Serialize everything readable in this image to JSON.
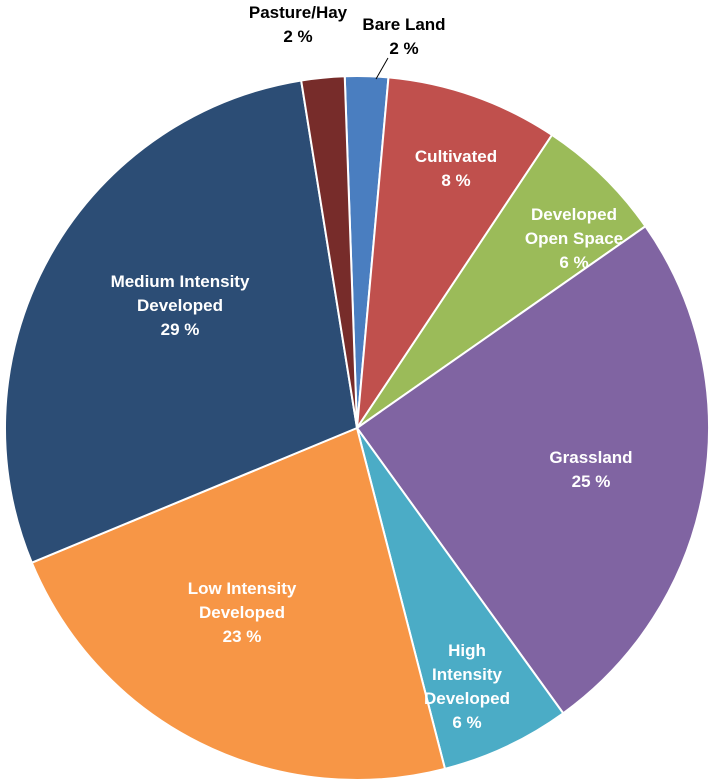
{
  "chart_data": {
    "type": "pie",
    "start_angle_deg": -2,
    "direction": "clockwise",
    "slices": [
      {
        "name": "Bare Land",
        "value": 2,
        "value_label": "2 %",
        "color": "#4a7ec0",
        "label_color": "#000000"
      },
      {
        "name": "Cultivated",
        "value": 8,
        "value_label": "8 %",
        "color": "#c0504d",
        "label_color": "#ffffff"
      },
      {
        "name": "Developed Open Space",
        "value": 6,
        "value_label": "6 %",
        "color": "#9bbb59",
        "label_color": "#ffffff"
      },
      {
        "name": "Grassland",
        "value": 25,
        "value_label": "25 %",
        "color": "#8064a2",
        "label_color": "#ffffff"
      },
      {
        "name": "High Intensity Developed",
        "value": 6,
        "value_label": "6 %",
        "color": "#4bacc6",
        "label_color": "#ffffff"
      },
      {
        "name": "Low Intensity Developed",
        "value": 23,
        "value_label": "23 %",
        "color": "#f79646",
        "label_color": "#ffffff"
      },
      {
        "name": "Medium Intensity Developed",
        "value": 29,
        "value_label": "29 %",
        "color": "#2c4d75",
        "label_color": "#ffffff"
      },
      {
        "name": "Pasture/Hay",
        "value": 2,
        "value_label": "2 %",
        "color": "#772c2a",
        "label_color": "#000000"
      }
    ]
  }
}
